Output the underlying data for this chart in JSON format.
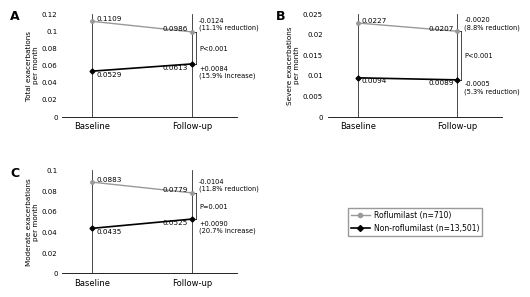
{
  "panels": [
    {
      "label": "A",
      "ylabel": "Total exacerbations\nper month",
      "ylim": [
        0,
        0.12
      ],
      "yticks": [
        0,
        0.02,
        0.04,
        0.06,
        0.08,
        0.1,
        0.12
      ],
      "ytick_labels": [
        "0",
        "0.02",
        "0.04",
        "0.06",
        "0.08",
        "0.1",
        "0.12"
      ],
      "rof_baseline": 0.1109,
      "rof_followup": 0.0986,
      "non_baseline": 0.0529,
      "non_followup": 0.0613,
      "annot_rof_line1": "-0.0124",
      "annot_rof_line2": "(11.1% reduction)",
      "annot_non_line1": "+0.0084",
      "annot_non_line2": "(15.9% increase)",
      "pvalue": "P<0.001"
    },
    {
      "label": "B",
      "ylabel": "Severe exacerbations\nper month",
      "ylim": [
        0,
        0.025
      ],
      "yticks": [
        0,
        0.005,
        0.01,
        0.015,
        0.02,
        0.025
      ],
      "ytick_labels": [
        "0",
        "0.005",
        "0.01",
        "0.015",
        "0.02",
        "0.025"
      ],
      "rof_baseline": 0.0227,
      "rof_followup": 0.0207,
      "non_baseline": 0.0094,
      "non_followup": 0.0089,
      "annot_rof_line1": "-0.0020",
      "annot_rof_line2": "(8.8% reduction)",
      "annot_non_line1": "-0.0005",
      "annot_non_line2": "(5.3% reduction)",
      "pvalue": "P<0.001"
    },
    {
      "label": "C",
      "ylabel": "Moderate exacerbations\nper month",
      "ylim": [
        0,
        0.1
      ],
      "yticks": [
        0,
        0.02,
        0.04,
        0.06,
        0.08,
        0.1
      ],
      "ytick_labels": [
        "0",
        "0.02",
        "0.04",
        "0.06",
        "0.08",
        "0.1"
      ],
      "rof_baseline": 0.0883,
      "rof_followup": 0.0779,
      "non_baseline": 0.0435,
      "non_followup": 0.0525,
      "annot_rof_line1": "-0.0104",
      "annot_rof_line2": "(11.8% reduction)",
      "annot_non_line1": "+0.0090",
      "annot_non_line2": "(20.7% increase)",
      "pvalue": "P=0.001"
    }
  ],
  "rof_color": "#999999",
  "non_color": "#000000",
  "x_labels": [
    "Baseline",
    "Follow-up"
  ],
  "legend_rof": "Roflumilast (n=710)",
  "legend_non": "Non-roflumilast (n=13,501)"
}
